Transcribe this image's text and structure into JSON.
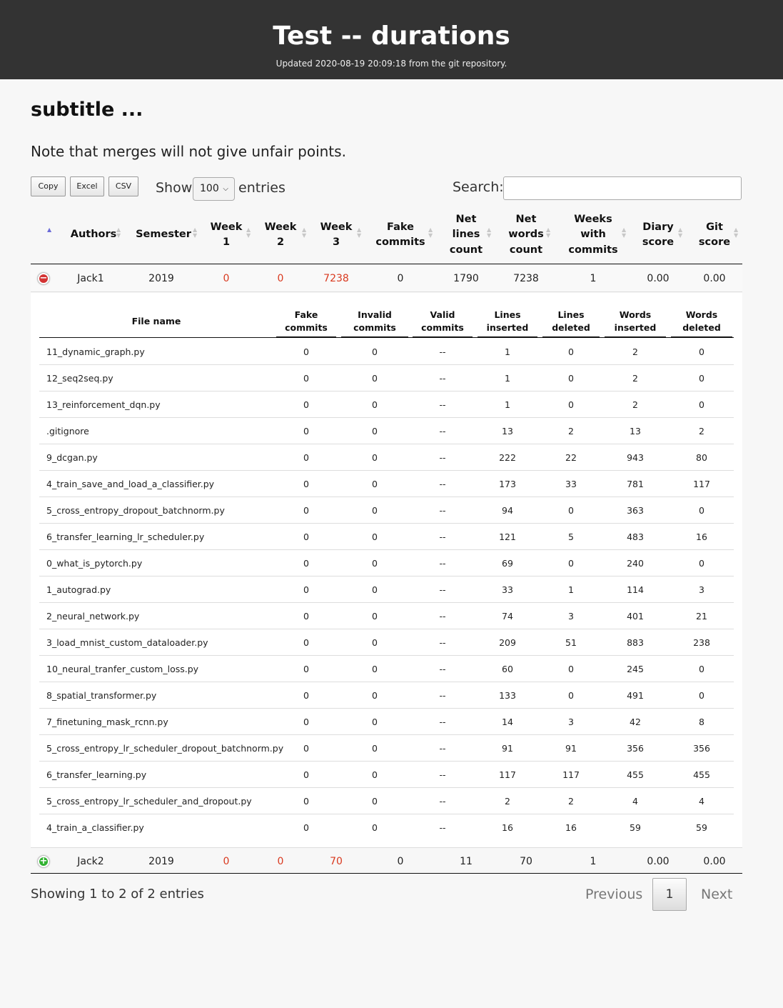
{
  "header": {
    "title": "Test -- durations",
    "updated": "Updated 2020-08-19 20:09:18 from the git repository."
  },
  "subtitle": "subtitle ...",
  "note": "Note that merges will not give unfair points.",
  "toolbar": {
    "copy_label": "Copy",
    "excel_label": "Excel",
    "csv_label": "CSV",
    "show_label": "Show",
    "entries_value": "100",
    "entries_label": "entries",
    "search_label": "Search:",
    "search_value": ""
  },
  "columns": [
    "Authors",
    "Semester",
    "Week 1",
    "Week 2",
    "Week 3",
    "Fake commits",
    "Net lines count",
    "Net words count",
    "Weeks with commits",
    "Diary score",
    "Git score"
  ],
  "column_display": [
    [
      "Authors"
    ],
    [
      "Semester"
    ],
    [
      "Week",
      "1"
    ],
    [
      "Week",
      "2"
    ],
    [
      "Week",
      "3"
    ],
    [
      "Fake",
      "commits"
    ],
    [
      "Net",
      "lines",
      "count"
    ],
    [
      "Net",
      "words",
      "count"
    ],
    [
      "Weeks",
      "with",
      "commits"
    ],
    [
      "Diary",
      "score"
    ],
    [
      "Git",
      "score"
    ]
  ],
  "rows": [
    {
      "author": "Jack1",
      "semester": "2019",
      "week1": "0",
      "week2": "0",
      "week3": "7238",
      "fake_commits": "0",
      "net_lines": "1790",
      "net_words": "7238",
      "weeks_with_commits": "1",
      "diary_score": "0.00",
      "git_score": "0.00",
      "expanded": true
    },
    {
      "author": "Jack2",
      "semester": "2019",
      "week1": "0",
      "week2": "0",
      "week3": "70",
      "fake_commits": "0",
      "net_lines": "11",
      "net_words": "70",
      "weeks_with_commits": "1",
      "diary_score": "0.00",
      "git_score": "0.00",
      "expanded": false
    }
  ],
  "file_table": {
    "columns": [
      "File name",
      "Fake commits",
      "Invalid commits",
      "Valid commits",
      "Lines inserted",
      "Lines deleted",
      "Words inserted",
      "Words deleted"
    ],
    "column_display": [
      [
        "File name"
      ],
      [
        "Fake",
        "commits"
      ],
      [
        "Invalid",
        "commits"
      ],
      [
        "Valid",
        "commits"
      ],
      [
        "Lines",
        "inserted"
      ],
      [
        "Lines",
        "deleted"
      ],
      [
        "Words",
        "inserted"
      ],
      [
        "Words",
        "deleted"
      ]
    ],
    "rows": [
      [
        "11_dynamic_graph.py",
        "0",
        "0",
        "--",
        "1",
        "0",
        "2",
        "0"
      ],
      [
        "12_seq2seq.py",
        "0",
        "0",
        "--",
        "1",
        "0",
        "2",
        "0"
      ],
      [
        "13_reinforcement_dqn.py",
        "0",
        "0",
        "--",
        "1",
        "0",
        "2",
        "0"
      ],
      [
        ".gitignore",
        "0",
        "0",
        "--",
        "13",
        "2",
        "13",
        "2"
      ],
      [
        "9_dcgan.py",
        "0",
        "0",
        "--",
        "222",
        "22",
        "943",
        "80"
      ],
      [
        "4_train_save_and_load_a_classifier.py",
        "0",
        "0",
        "--",
        "173",
        "33",
        "781",
        "117"
      ],
      [
        "5_cross_entropy_dropout_batchnorm.py",
        "0",
        "0",
        "--",
        "94",
        "0",
        "363",
        "0"
      ],
      [
        "6_transfer_learning_lr_scheduler.py",
        "0",
        "0",
        "--",
        "121",
        "5",
        "483",
        "16"
      ],
      [
        "0_what_is_pytorch.py",
        "0",
        "0",
        "--",
        "69",
        "0",
        "240",
        "0"
      ],
      [
        "1_autograd.py",
        "0",
        "0",
        "--",
        "33",
        "1",
        "114",
        "3"
      ],
      [
        "2_neural_network.py",
        "0",
        "0",
        "--",
        "74",
        "3",
        "401",
        "21"
      ],
      [
        "3_load_mnist_custom_dataloader.py",
        "0",
        "0",
        "--",
        "209",
        "51",
        "883",
        "238"
      ],
      [
        "10_neural_tranfer_custom_loss.py",
        "0",
        "0",
        "--",
        "60",
        "0",
        "245",
        "0"
      ],
      [
        "8_spatial_transformer.py",
        "0",
        "0",
        "--",
        "133",
        "0",
        "491",
        "0"
      ],
      [
        "7_finetuning_mask_rcnn.py",
        "0",
        "0",
        "--",
        "14",
        "3",
        "42",
        "8"
      ],
      [
        "5_cross_entropy_lr_scheduler_dropout_batchnorm.py",
        "0",
        "0",
        "--",
        "91",
        "91",
        "356",
        "356"
      ],
      [
        "6_transfer_learning.py",
        "0",
        "0",
        "--",
        "117",
        "117",
        "455",
        "455"
      ],
      [
        "5_cross_entropy_lr_scheduler_and_dropout.py",
        "0",
        "0",
        "--",
        "2",
        "2",
        "4",
        "4"
      ],
      [
        "4_train_a_classifier.py",
        "0",
        "0",
        "--",
        "16",
        "16",
        "59",
        "59"
      ]
    ]
  },
  "footer": {
    "info": "Showing 1 to 2 of 2 entries",
    "previous": "Previous",
    "current_page": "1",
    "next": "Next"
  },
  "colors": {
    "header_bg": "#333333",
    "week_value": "#d9391f",
    "expand_minus": "#d33333",
    "expand_plus": "#31b131"
  }
}
